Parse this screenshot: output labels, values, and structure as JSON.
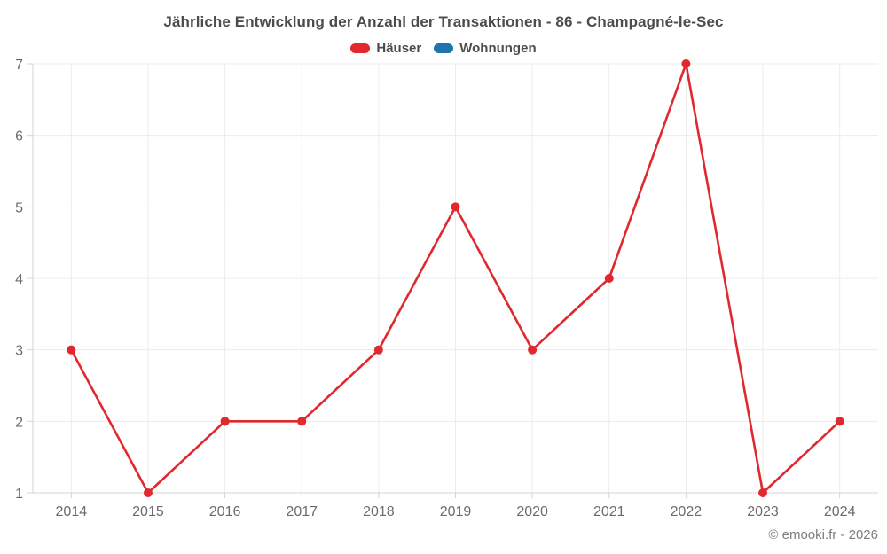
{
  "chart": {
    "title": "Jährliche Entwicklung der Anzahl der Transaktionen - 86 - Champagné-le-Sec",
    "footer": "© emooki.fr - 2026"
  },
  "chart_data": {
    "type": "line",
    "title": "Jährliche Entwicklung der Anzahl der Transaktionen - 86 - Champagné-le-Sec",
    "categories": [
      "2014",
      "2015",
      "2016",
      "2017",
      "2018",
      "2019",
      "2020",
      "2021",
      "2022",
      "2023",
      "2024"
    ],
    "series": [
      {
        "name": "Häuser",
        "color": "#e0282e",
        "values": [
          3,
          1,
          2,
          2,
          3,
          5,
          3,
          4,
          7,
          1,
          2
        ]
      },
      {
        "name": "Wohnungen",
        "color": "#1f74ad",
        "values": []
      }
    ],
    "xlabel": "",
    "ylabel": "",
    "yticks": [
      1,
      2,
      3,
      4,
      5,
      6,
      7
    ],
    "ylim": [
      1,
      7
    ],
    "grid": true,
    "legend_position": "top"
  },
  "colors": {
    "grid_line": "#ececec",
    "axis_line": "#d4d4d4",
    "tick_label": "#6b6b6b",
    "title_text": "#4c4c4c",
    "footer_text": "#7d7d7d",
    "background": "#ffffff"
  }
}
